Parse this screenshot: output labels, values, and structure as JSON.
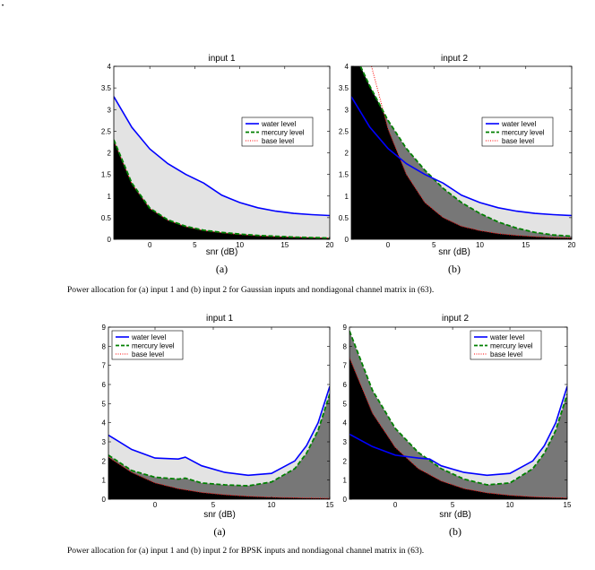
{
  "page": {
    "dot": "•",
    "captions": [
      "Power allocation for (a) input 1 and (b) input 2 for Gaussian inputs and nondiagonal channel matrix in (63).",
      "Power allocation for (a) input 1 and (b) input 2 for BPSK inputs and nondiagonal channel matrix in (63)."
    ]
  },
  "colors": {
    "water": "#0000ff",
    "mercury": "#008000",
    "base": "#ff0000",
    "light_fill": "#e3e3e3",
    "mid_fill": "#777777",
    "dark_fill": "#000000"
  },
  "chart_data": [
    {
      "type": "area",
      "subfigure": "(a)",
      "title": "input 1",
      "xlabel": "snr (dB)",
      "ylabel": "",
      "xlim": [
        -4,
        20
      ],
      "ylim": [
        0,
        4
      ],
      "xticks": [
        0,
        5,
        10,
        15,
        20
      ],
      "yticks": [
        0,
        0.5,
        1,
        1.5,
        2,
        2.5,
        3,
        3.5,
        4
      ],
      "legend": [
        "water level",
        "mercury level",
        "base level"
      ],
      "legend_position": "right",
      "series": [
        {
          "name": "water level",
          "x": [
            -4,
            -2,
            0,
            2,
            4,
            6,
            6.5,
            8,
            10,
            12,
            14,
            16,
            18,
            20
          ],
          "y": [
            3.3,
            2.59,
            2.09,
            1.75,
            1.5,
            1.3,
            1.23,
            1.02,
            0.85,
            0.73,
            0.65,
            0.6,
            0.57,
            0.55
          ]
        },
        {
          "name": "mercury level",
          "x": [
            -4,
            -2,
            0,
            2,
            4,
            6,
            8,
            10,
            12,
            14,
            16,
            18,
            20
          ],
          "y": [
            2.3,
            1.3,
            0.72,
            0.45,
            0.3,
            0.21,
            0.16,
            0.12,
            0.09,
            0.07,
            0.05,
            0.04,
            0.03
          ]
        },
        {
          "name": "base level",
          "x": [
            -4,
            -2,
            0,
            2,
            4,
            6,
            8,
            10,
            12,
            14,
            16,
            18,
            20
          ],
          "y": [
            2.28,
            1.28,
            0.71,
            0.44,
            0.29,
            0.2,
            0.15,
            0.11,
            0.08,
            0.06,
            0.05,
            0.04,
            0.03
          ]
        }
      ]
    },
    {
      "type": "area",
      "subfigure": "(b)",
      "title": "input 2",
      "xlabel": "snr (dB)",
      "ylabel": "",
      "xlim": [
        -4,
        20
      ],
      "ylim": [
        0,
        4
      ],
      "xticks": [
        0,
        5,
        10,
        15,
        20
      ],
      "yticks": [
        0,
        0.5,
        1,
        1.5,
        2,
        2.5,
        3,
        3.5,
        4
      ],
      "legend": [
        "water level",
        "mercury level",
        "base level"
      ],
      "legend_position": "right",
      "series": [
        {
          "name": "water level",
          "x": [
            -4,
            -2,
            0,
            2,
            4,
            6,
            8,
            10,
            12,
            14,
            16,
            18,
            20
          ],
          "y": [
            3.3,
            2.6,
            2.1,
            1.75,
            1.5,
            1.3,
            1.02,
            0.85,
            0.73,
            0.65,
            0.6,
            0.57,
            0.55
          ]
        },
        {
          "name": "mercury level",
          "x": [
            -3,
            -2,
            0,
            2,
            4,
            6,
            8,
            10,
            12,
            14,
            16,
            18,
            20
          ],
          "y": [
            4,
            3.55,
            2.75,
            2.1,
            1.6,
            1.18,
            0.85,
            0.6,
            0.4,
            0.26,
            0.16,
            0.1,
            0.07
          ]
        },
        {
          "name": "base level",
          "x": [
            -1.8,
            0,
            2,
            4,
            6,
            8,
            10,
            12,
            14,
            16,
            18,
            20
          ],
          "y": [
            4,
            2.55,
            1.5,
            0.85,
            0.5,
            0.3,
            0.2,
            0.13,
            0.09,
            0.06,
            0.04,
            0.03
          ]
        }
      ]
    },
    {
      "type": "area",
      "subfigure": "(a)",
      "title": "input 1",
      "xlabel": "snr (dB)",
      "ylabel": "",
      "xlim": [
        -4,
        15
      ],
      "ylim": [
        0,
        9
      ],
      "xticks": [
        0,
        5,
        10,
        15
      ],
      "yticks": [
        0,
        1,
        2,
        3,
        4,
        5,
        6,
        7,
        8,
        9
      ],
      "legend": [
        "water level",
        "mercury level",
        "base level"
      ],
      "legend_position": "top",
      "series": [
        {
          "name": "water level",
          "x": [
            -4,
            -2,
            0,
            2,
            2.6,
            4,
            6,
            8,
            10,
            12,
            13,
            14,
            15
          ],
          "y": [
            3.35,
            2.6,
            2.15,
            2.1,
            2.2,
            1.75,
            1.4,
            1.25,
            1.35,
            2.0,
            2.8,
            4.0,
            5.9
          ]
        },
        {
          "name": "mercury level",
          "x": [
            -4,
            -2,
            0,
            2,
            2.6,
            4,
            6,
            8,
            10,
            12,
            13,
            14,
            15
          ],
          "y": [
            2.3,
            1.5,
            1.15,
            1.05,
            1.1,
            0.85,
            0.75,
            0.7,
            0.9,
            1.6,
            2.4,
            3.6,
            5.5
          ]
        },
        {
          "name": "base level",
          "x": [
            -4,
            -2,
            0,
            2,
            4,
            6,
            8,
            10,
            12,
            13,
            14,
            15
          ],
          "y": [
            2.2,
            1.4,
            0.85,
            0.55,
            0.35,
            0.23,
            0.15,
            0.1,
            0.07,
            0.06,
            0.05,
            0.04
          ]
        }
      ]
    },
    {
      "type": "area",
      "subfigure": "(b)",
      "title": "input 2",
      "xlabel": "snr (dB)",
      "ylabel": "",
      "xlim": [
        -4,
        15
      ],
      "ylim": [
        0,
        9
      ],
      "xticks": [
        0,
        5,
        10,
        15
      ],
      "yticks": [
        0,
        1,
        2,
        3,
        4,
        5,
        6,
        7,
        8,
        9
      ],
      "legend": [
        "water level",
        "mercury level",
        "base level"
      ],
      "legend_position": "top",
      "series": [
        {
          "name": "water level",
          "x": [
            -4,
            -2,
            0,
            2,
            3,
            4,
            6,
            8,
            10,
            12,
            13,
            14,
            15
          ],
          "y": [
            3.4,
            2.75,
            2.3,
            2.15,
            2.1,
            1.75,
            1.4,
            1.25,
            1.35,
            2.0,
            2.8,
            4.0,
            5.9
          ]
        },
        {
          "name": "mercury level",
          "x": [
            -4,
            -2,
            0,
            2,
            4,
            6,
            8,
            10,
            12,
            13,
            14,
            15
          ],
          "y": [
            8.8,
            5.7,
            3.7,
            2.45,
            1.6,
            1.05,
            0.75,
            0.85,
            1.6,
            2.4,
            3.6,
            5.5
          ]
        },
        {
          "name": "base level",
          "x": [
            -4,
            -2,
            0,
            2,
            4,
            6,
            8,
            10,
            12,
            13,
            14,
            15
          ],
          "y": [
            7.4,
            4.5,
            2.7,
            1.6,
            0.95,
            0.55,
            0.33,
            0.2,
            0.12,
            0.1,
            0.08,
            0.06
          ]
        }
      ]
    }
  ]
}
